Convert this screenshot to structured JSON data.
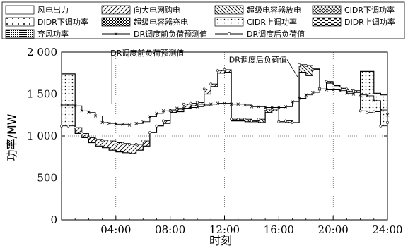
{
  "chart_data": {
    "type": "line",
    "title": "",
    "xlabel": "时刻",
    "ylabel": "功率/MW",
    "xlim": [
      0,
      24
    ],
    "ylim": [
      0,
      2000
    ],
    "x_ticks": [
      "04:00",
      "08:00",
      "12:00",
      "16:00",
      "20:00",
      "24:00"
    ],
    "x_tick_values": [
      4,
      8,
      12,
      16,
      20,
      24
    ],
    "y_ticks": [
      "0",
      "500",
      "1 000",
      "1 500",
      "2 000"
    ],
    "y_tick_values": [
      0,
      500,
      1000,
      1500,
      2000
    ],
    "grid": true,
    "legend_position": "top",
    "legend": [
      {
        "label": "风电出力",
        "pattern": "plain"
      },
      {
        "label": "向大电网购电",
        "pattern": "hatch-forward"
      },
      {
        "label": "超级电容器放电",
        "pattern": "hatch-back"
      },
      {
        "label": "CIDR下调功率",
        "pattern": "crosshatch"
      },
      {
        "label": "DIDR下调功率",
        "pattern": "sparse-dots"
      },
      {
        "label": "超级电容器充电",
        "pattern": "checker"
      },
      {
        "label": "CIDR上调功率",
        "pattern": "dots"
      },
      {
        "label": "DIDR上调功率",
        "pattern": "dashes"
      },
      {
        "label": "弃风功率",
        "pattern": "dense-dots"
      },
      {
        "label": "DR调度前负荷预测值",
        "pattern": "line-cross-marker"
      },
      {
        "label": "DR调度后负荷值",
        "pattern": "line-circle-marker"
      }
    ],
    "annotations": [
      {
        "text": "DR调度前负荷预测值",
        "x": 3.6,
        "y": 1960
      },
      {
        "text": "DR调度后负荷值",
        "x": 16.6,
        "y": 1880
      }
    ],
    "series": [
      {
        "name": "DR调度前负荷预测值",
        "x": [
          0,
          0.5,
          1,
          1.5,
          2,
          2.5,
          3,
          3.5,
          4,
          4.5,
          5,
          5.5,
          6,
          6.5,
          7,
          7.5,
          8,
          8.5,
          9,
          9.5,
          10,
          10.5,
          11,
          11.5,
          12,
          12.5,
          13,
          13.5,
          14,
          14.5,
          15,
          15.5,
          16,
          16.5,
          17,
          17.5,
          18,
          18.5,
          19,
          19.5,
          20,
          20.5,
          21,
          21.5,
          22,
          22.5,
          23,
          23.5,
          24
        ],
        "y": [
          1370,
          1370,
          1360,
          1300,
          1280,
          1240,
          1160,
          1150,
          1140,
          1140,
          1130,
          1150,
          1170,
          1230,
          1270,
          1300,
          1310,
          1330,
          1330,
          1340,
          1350,
          1370,
          1380,
          1390,
          1390,
          1380,
          1380,
          1370,
          1350,
          1350,
          1340,
          1340,
          1340,
          1350,
          1410,
          1450,
          1490,
          1520,
          1560,
          1550,
          1550,
          1540,
          1510,
          1500,
          1490,
          1480,
          1420,
          1310,
          1250
        ]
      },
      {
        "name": "DR调度后负荷值",
        "x": [
          0,
          0.5,
          1,
          1.5,
          2,
          2.5,
          3,
          3.5,
          4,
          4.5,
          5,
          5.5,
          6,
          6.5,
          7,
          7.5,
          8,
          8.5,
          9,
          9.5,
          10,
          10.5,
          11,
          11.5,
          12,
          12.5,
          13,
          13.5,
          14,
          14.5,
          15,
          15.5,
          16,
          16.5,
          17,
          17.5,
          18,
          18.5,
          19,
          19.5,
          20,
          20.5,
          21,
          21.5,
          22,
          22.5,
          23,
          23.5,
          24
        ],
        "y": [
          1120,
          1120,
          1100,
          1030,
          980,
          960,
          950,
          940,
          920,
          910,
          900,
          900,
          940,
          1040,
          1120,
          1180,
          1300,
          1320,
          1380,
          1390,
          1400,
          1560,
          1620,
          1780,
          1790,
          1200,
          1200,
          1200,
          1180,
          1200,
          1320,
          1320,
          1170,
          1180,
          1160,
          1850,
          1840,
          1790,
          1560,
          1650,
          1600,
          1570,
          1560,
          1540,
          1300,
          1280,
          1290,
          1120,
          1160
        ]
      },
      {
        "name": "风电出力",
        "x": [
          0,
          0.5,
          1,
          1.5,
          2,
          2.5,
          3,
          3.5,
          4,
          4.5,
          5,
          5.5,
          6,
          6.5,
          7,
          7.5,
          8,
          8.5,
          9,
          9.5,
          10,
          10.5,
          11,
          11.5,
          12,
          12.5,
          13,
          13.5,
          14,
          14.5,
          15,
          15.5,
          16,
          16.5,
          17,
          17.5,
          18,
          18.5,
          19,
          19.5,
          20,
          20.5,
          21,
          21.5,
          22,
          22.5,
          23,
          23.5,
          24
        ],
        "y": [
          1740,
          1740,
          1030,
          980,
          920,
          880,
          860,
          830,
          810,
          800,
          790,
          830,
          880,
          1040,
          1120,
          1150,
          1280,
          1290,
          1330,
          1360,
          1380,
          1500,
          1590,
          1750,
          1760,
          1180,
          1180,
          1170,
          1170,
          1160,
          1280,
          1300,
          1170,
          1160,
          1160,
          1760,
          1720,
          1800,
          1560,
          1630,
          1600,
          1560,
          1530,
          1520,
          1770,
          1770,
          1510,
          1490,
          1490
        ]
      }
    ]
  }
}
